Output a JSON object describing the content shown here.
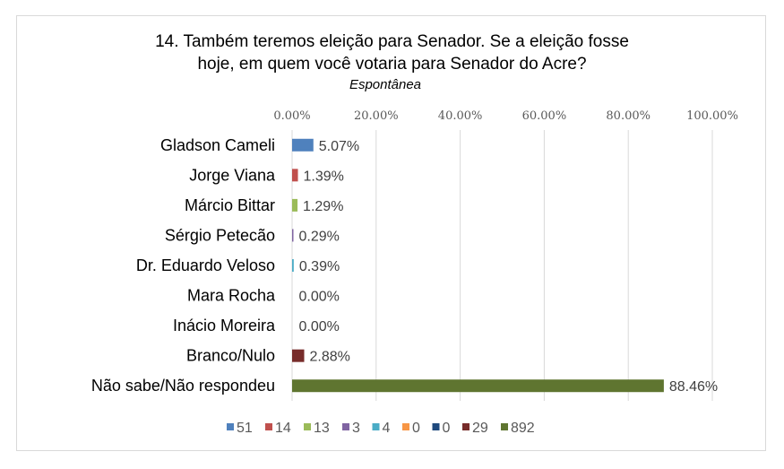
{
  "chart_data": {
    "type": "bar",
    "orientation": "horizontal",
    "title_lines": [
      "14. Também teremos eleição para Senador. Se a eleição fosse",
      "hoje, em quem você votaria para Senador do Acre?"
    ],
    "subtitle": "Espontânea",
    "categories": [
      "Gladson Cameli",
      "Jorge Viana",
      "Márcio Bittar",
      "Sérgio Petecão",
      "Dr. Eduardo Veloso",
      "Mara Rocha",
      "Inácio Moreira",
      "Branco/Nulo",
      "Não sabe/Não respondeu"
    ],
    "values": [
      5.07,
      1.39,
      1.29,
      0.29,
      0.39,
      0.0,
      0.0,
      2.88,
      88.46
    ],
    "data_labels": [
      "5.07%",
      "1.39%",
      "1.29%",
      "0.29%",
      "0.39%",
      "0.00%",
      "0.00%",
      "2.88%",
      "88.46%"
    ],
    "colors": [
      "#4f81bd",
      "#c0504d",
      "#9bbb59",
      "#8064a2",
      "#4bacc6",
      "#f79646",
      "#1f497d",
      "#772c2a",
      "#5f7530"
    ],
    "xlim": [
      0,
      100
    ],
    "x_ticks": [
      "0.00%",
      "20.00%",
      "40.00%",
      "60.00%",
      "80.00%",
      "100.00%"
    ],
    "grid": true,
    "legend_position": "bottom",
    "legend": [
      "51",
      "14",
      "13",
      "3",
      "4",
      "0",
      "0",
      "29",
      "892"
    ]
  }
}
